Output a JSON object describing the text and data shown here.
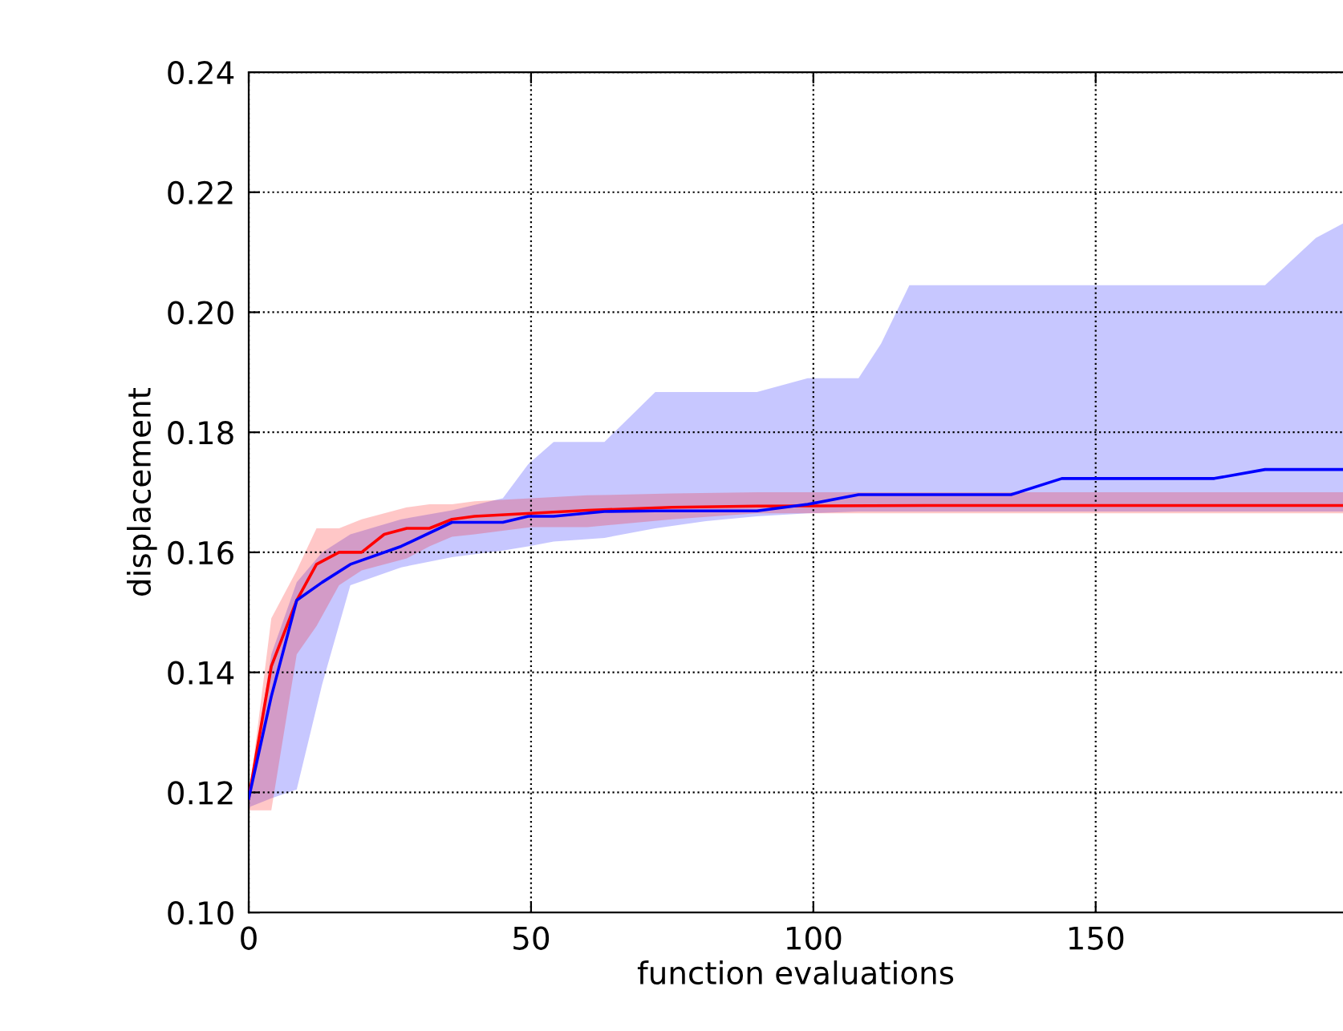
{
  "chart_data": {
    "type": "line",
    "xlabel": "function evaluations",
    "ylabel": "displacement",
    "xlim": [
      0,
      193.8
    ],
    "xticks": [
      0,
      50,
      100,
      150
    ],
    "ylim": [
      0.1,
      0.24
    ],
    "yticks": [
      {
        "value": 0.1,
        "label": "0.10"
      },
      {
        "value": 0.12,
        "label": "0.12"
      },
      {
        "value": 0.14,
        "label": "0.14"
      },
      {
        "value": 0.16,
        "label": "0.16"
      },
      {
        "value": 0.18,
        "label": "0.18"
      },
      {
        "value": 0.2,
        "label": "0.20"
      },
      {
        "value": 0.22,
        "label": "0.22"
      },
      {
        "value": 0.24,
        "label": "0.24"
      }
    ],
    "grid": true,
    "line_style": "solid",
    "marker": "none",
    "series": [
      {
        "color": "#0000ff",
        "x": [
          0,
          4,
          8.5,
          13,
          18,
          27,
          36,
          45,
          49.5,
          54,
          63,
          72,
          81,
          90,
          99,
          108,
          112,
          117,
          135,
          144,
          171,
          180,
          189,
          193.8
        ],
        "values": [
          0.119,
          0.136,
          0.152,
          0.155,
          0.158,
          0.161,
          0.165,
          0.165,
          0.166,
          0.166,
          0.1668,
          0.1669,
          0.1669,
          0.1669,
          0.168,
          0.1696,
          0.1696,
          0.1696,
          0.1696,
          0.1723,
          0.1723,
          0.1738,
          0.1738,
          0.1738
        ],
        "lower": [
          0.1175,
          0.119,
          0.1205,
          0.138,
          0.1545,
          0.1575,
          0.1592,
          0.1603,
          0.161,
          0.1618,
          0.1624,
          0.164,
          0.1652,
          0.166,
          0.1665,
          0.1668,
          0.1668,
          0.1668,
          0.1668,
          0.1668,
          0.1668,
          0.1668,
          0.1668,
          0.1668
        ],
        "upper": [
          0.119,
          0.143,
          0.155,
          0.16,
          0.163,
          0.1655,
          0.167,
          0.169,
          0.1747,
          0.1784,
          0.1784,
          0.1867,
          0.1867,
          0.1867,
          0.189,
          0.189,
          0.1948,
          0.2045,
          0.2045,
          0.2045,
          0.2045,
          0.2045,
          0.2124,
          0.2148
        ]
      },
      {
        "color": "#ff0000",
        "x": [
          0,
          4,
          8.5,
          12,
          16,
          20,
          24,
          28,
          32,
          36,
          40,
          50,
          60,
          75,
          90,
          120,
          150,
          193.8
        ],
        "values": [
          0.119,
          0.141,
          0.152,
          0.158,
          0.16,
          0.16,
          0.163,
          0.164,
          0.164,
          0.1655,
          0.166,
          0.1665,
          0.167,
          0.1675,
          0.1677,
          0.1678,
          0.1678,
          0.1678
        ],
        "lower": [
          0.117,
          0.117,
          0.143,
          0.1477,
          0.1545,
          0.157,
          0.158,
          0.159,
          0.161,
          0.1626,
          0.163,
          0.1642,
          0.1642,
          0.1655,
          0.1665,
          0.1665,
          0.1665,
          0.1665
        ],
        "upper": [
          0.119,
          0.149,
          0.157,
          0.164,
          0.164,
          0.1655,
          0.1665,
          0.1675,
          0.168,
          0.168,
          0.1685,
          0.169,
          0.1695,
          0.1698,
          0.17,
          0.17,
          0.17,
          0.17
        ]
      }
    ]
  }
}
